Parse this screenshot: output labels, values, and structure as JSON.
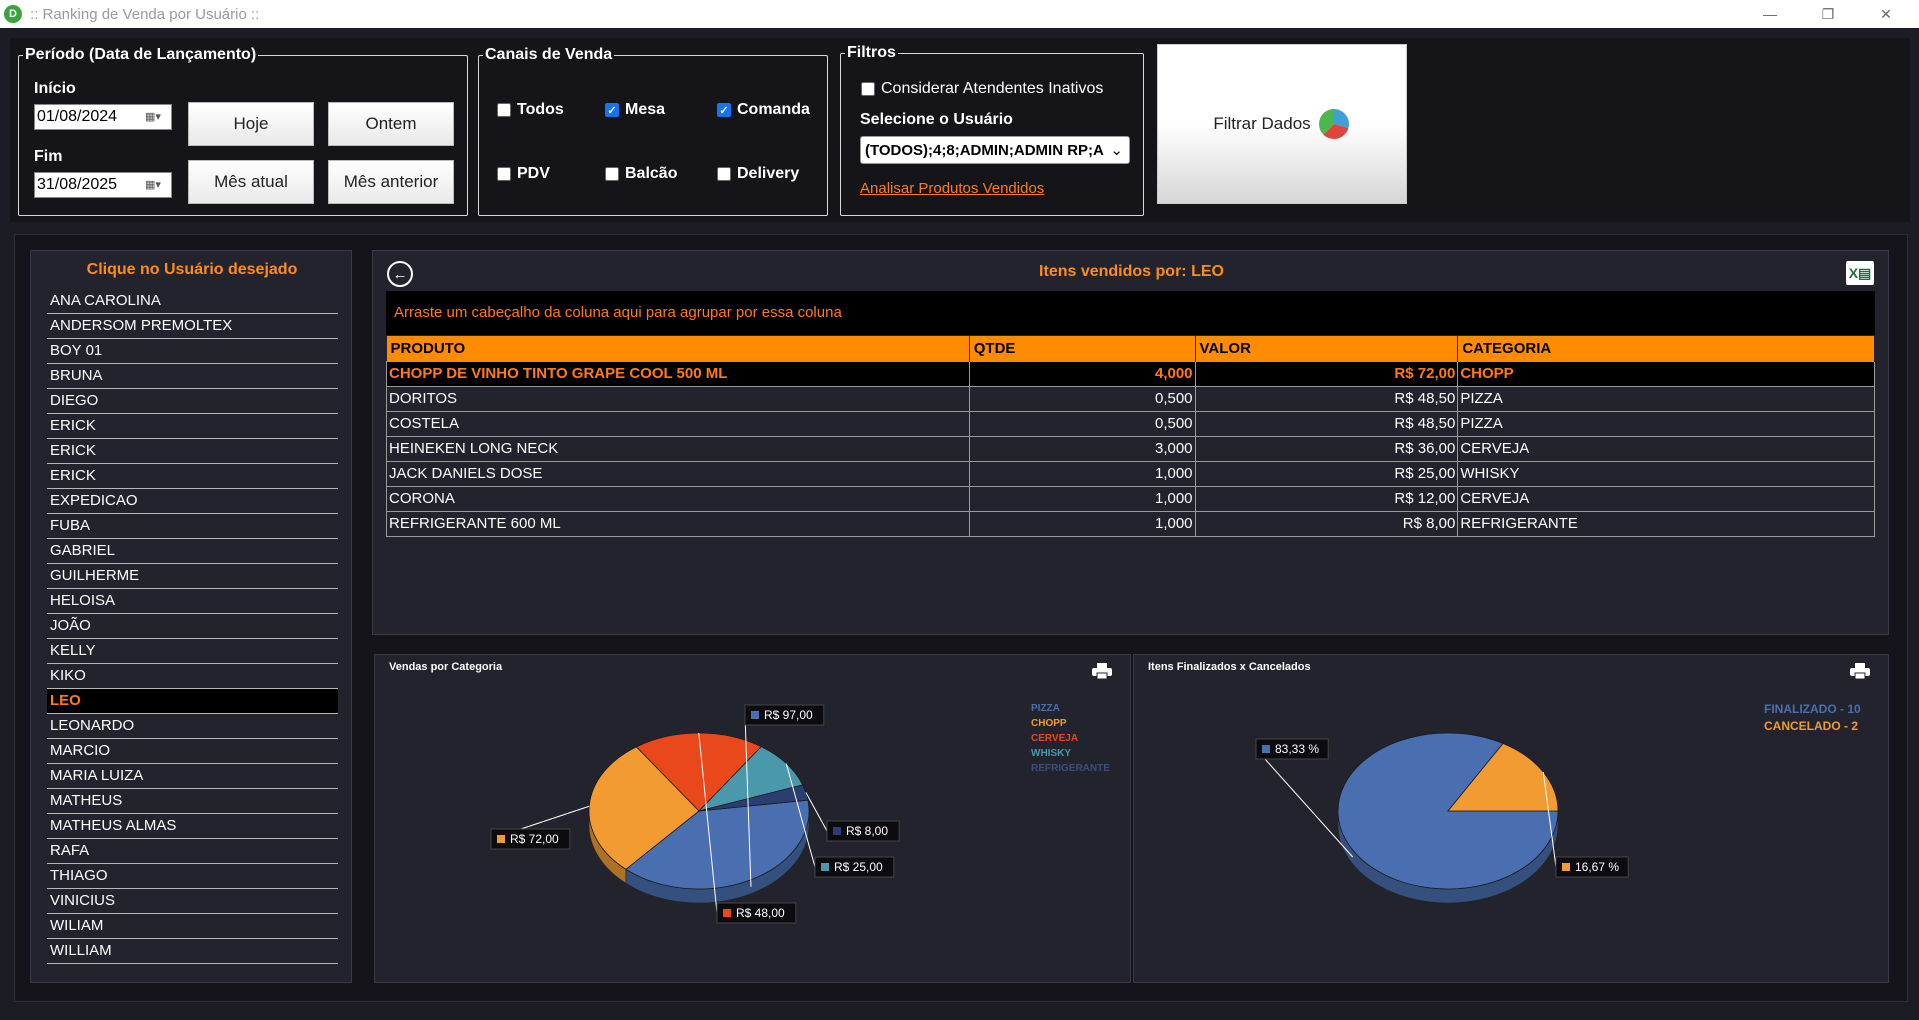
{
  "window": {
    "title": ":: Ranking de Venda por Usuário ::"
  },
  "periodo": {
    "legend": "Período (Data de Lançamento)",
    "inicio_label": "Início",
    "inicio_value": "01/08/2024",
    "fim_label": "Fim",
    "fim_value": "31/08/2025",
    "btn_hoje": "Hoje",
    "btn_ontem": "Ontem",
    "btn_mes_atual": "Mês atual",
    "btn_mes_anterior": "Mês anterior"
  },
  "canais": {
    "legend": "Canais de Venda",
    "items": [
      {
        "label": "Todos",
        "checked": false
      },
      {
        "label": "Mesa",
        "checked": true
      },
      {
        "label": "Comanda",
        "checked": true
      },
      {
        "label": "PDV",
        "checked": false
      },
      {
        "label": "Balcão",
        "checked": false
      },
      {
        "label": "Delivery",
        "checked": false
      }
    ]
  },
  "filtros": {
    "legend": "Filtros",
    "inativos_label": "Considerar Atendentes Inativos",
    "usuario_label": "Selecione o Usuário",
    "usuario_value": "(TODOS);4;8;ADMIN;ADMIN RP;A",
    "link_label": "Analisar Produtos Vendidos"
  },
  "filtrar_button": "Filtrar Dados",
  "users": {
    "header": "Clique no Usuário desejado",
    "selected": "LEO",
    "items": [
      "ANA CAROLINA",
      "ANDERSOM PREMOLTEX",
      "BOY 01",
      "BRUNA",
      "DIEGO",
      "ERICK",
      "ERICK",
      "ERICK",
      "EXPEDICAO",
      "FUBA",
      "GABRIEL",
      "GUILHERME",
      "HELOISA",
      "JOÃO",
      "KELLY",
      "KIKO",
      "LEO",
      "LEONARDO",
      "MARCIO",
      "MARIA LUIZA",
      "MATHEUS",
      "MATHEUS ALMAS",
      "RAFA",
      "THIAGO",
      "VINICIUS",
      "WILIAM",
      "WILLIAM"
    ]
  },
  "grid": {
    "title": "Itens vendidos por: LEO",
    "group_hint": "Arraste um cabeçalho da coluna aqui para agrupar por essa coluna",
    "columns": [
      "PRODUTO",
      "QTDE",
      "VALOR",
      "CATEGORIA"
    ],
    "rows": [
      [
        "CHOPP DE VINHO TINTO GRAPE COOL 500 ML",
        "4,000",
        "R$ 72,00",
        "CHOPP"
      ],
      [
        "DORITOS",
        "0,500",
        "R$ 48,50",
        "PIZZA"
      ],
      [
        "COSTELA",
        "0,500",
        "R$ 48,50",
        "PIZZA"
      ],
      [
        "HEINEKEN LONG NECK",
        "3,000",
        "R$ 36,00",
        "CERVEJA"
      ],
      [
        "JACK DANIELS DOSE",
        "1,000",
        "R$ 25,00",
        "WHISKY"
      ],
      [
        "CORONA",
        "1,000",
        "R$ 12,00",
        "CERVEJA"
      ],
      [
        "REFRIGERANTE 600 ML",
        "1,000",
        "R$ 8,00",
        "REFRIGERANTE"
      ]
    ]
  },
  "chart_data": [
    {
      "type": "pie",
      "title": "Vendas por Categoria",
      "categories": [
        "PIZZA",
        "CHOPP",
        "CERVEJA",
        "WHISKY",
        "REFRIGERANTE"
      ],
      "values": [
        97.0,
        72.0,
        48.0,
        25.0,
        8.0
      ],
      "labels": [
        "R$ 97,00",
        "R$ 72,00",
        "R$ 48,00",
        "R$ 25,00",
        "R$ 8,00"
      ],
      "colors": [
        "#4a6fb0",
        "#f29b30",
        "#e8481a",
        "#4a98ab",
        "#2a3f70"
      ],
      "legend_colors": [
        "#4a6fb0",
        "#f29b30",
        "#e8481a",
        "#4a98ab",
        "#3a4f80"
      ],
      "legend": "top-right"
    },
    {
      "type": "pie",
      "title": "Itens Finalizados x Cancelados",
      "categories": [
        "FINALIZADO - 10",
        "CANCELADO - 2"
      ],
      "values": [
        10,
        2
      ],
      "labels": [
        "83,33 %",
        "16,67 %"
      ],
      "colors": [
        "#4a6fb0",
        "#f29b30"
      ],
      "legend": "top-right"
    }
  ]
}
